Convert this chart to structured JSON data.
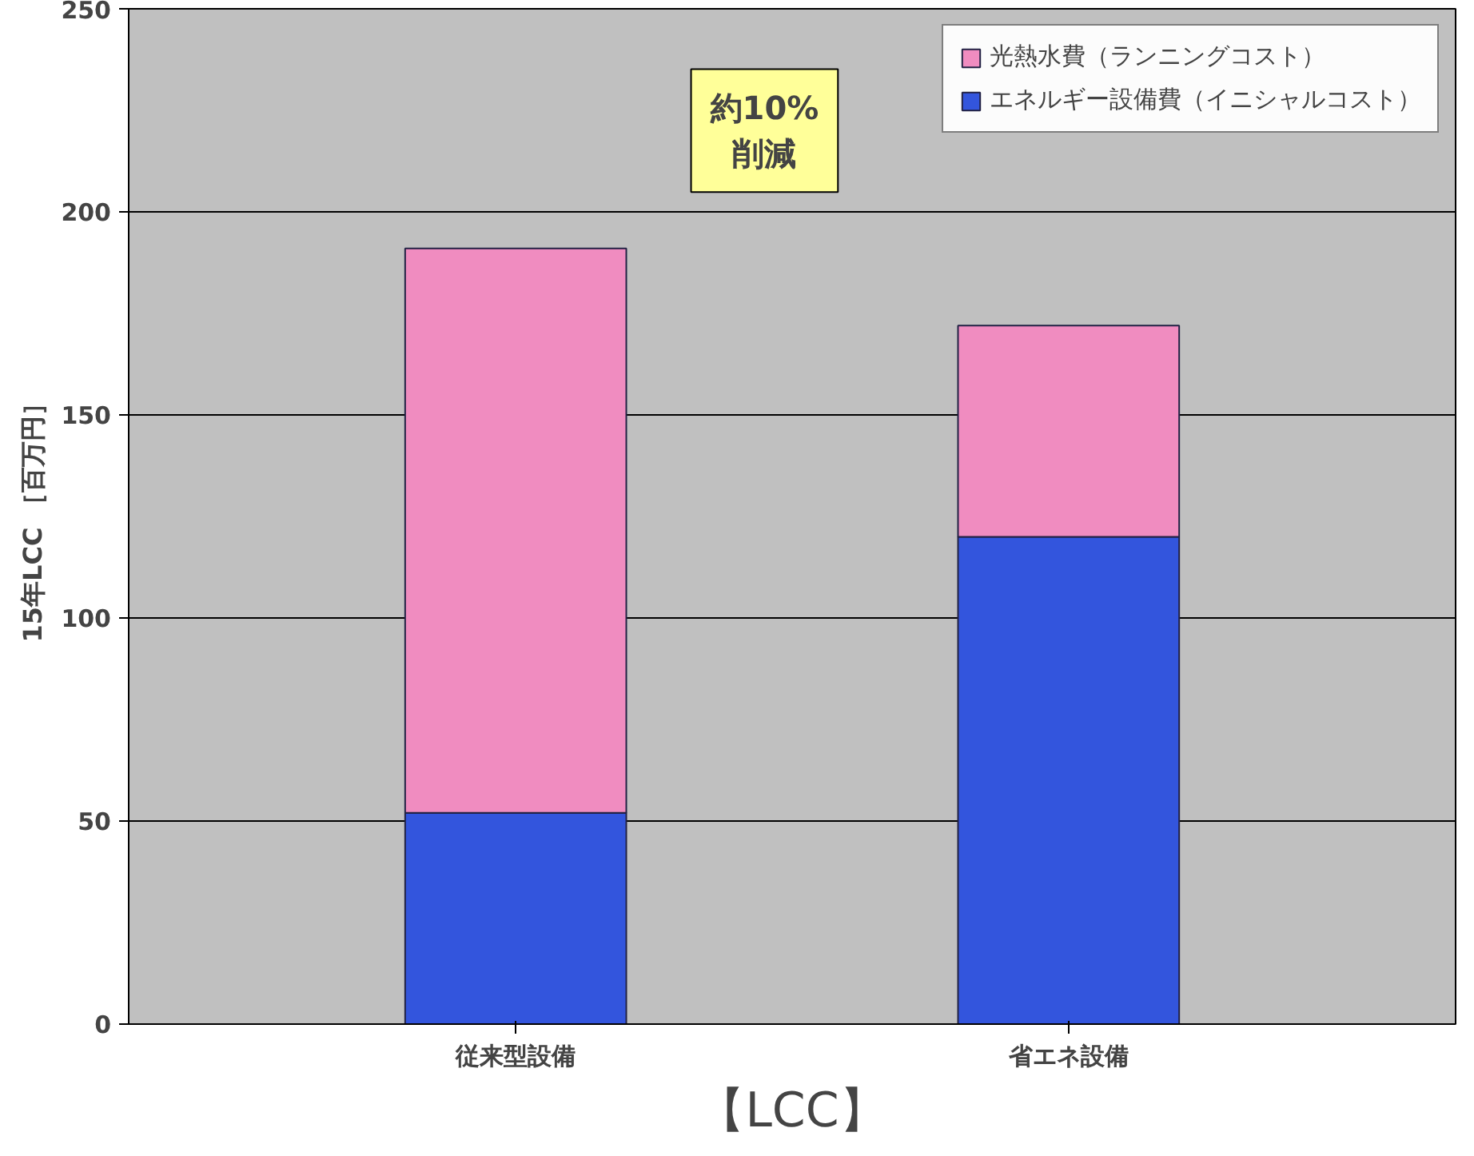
{
  "chart_data": {
    "type": "bar",
    "stacked": true,
    "ylabel": "15年LCC ［百万円］",
    "xlabel": "【LCC】",
    "categories": [
      "従来型設備",
      "省エネ設備"
    ],
    "series": [
      {
        "name": "エネルギー設備費（イニシャルコスト）",
        "color": "#3355dd",
        "values": [
          52,
          120
        ]
      },
      {
        "name": "光熱水費（ランニングコスト）",
        "color": "#f08cc0",
        "values": [
          139,
          52
        ]
      }
    ],
    "ylim": [
      0,
      250
    ],
    "yticks": [
      0,
      50,
      100,
      150,
      200,
      250
    ],
    "grid": "y",
    "legend": "top right",
    "annotations": [
      "約10%\n削減"
    ]
  }
}
